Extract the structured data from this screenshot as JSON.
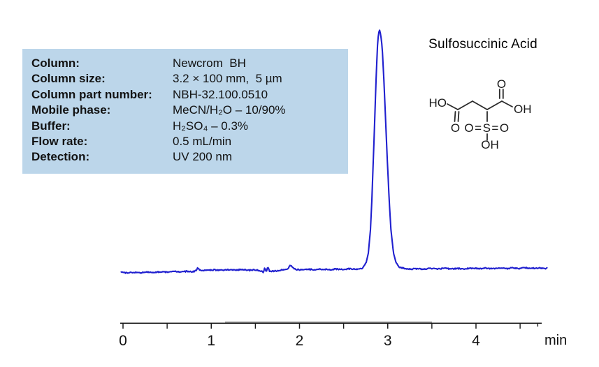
{
  "title": "Sulfosuccinic Acid",
  "params": {
    "background_color": "#bcd6ea",
    "rows": [
      {
        "label": "Column:",
        "value": "Newcrom  BH"
      },
      {
        "label": "Column size:",
        "value": "3.2 × 100 mm,  5 µm"
      },
      {
        "label": "Column part number:",
        "value": "NBH-32.100.0510"
      },
      {
        "label": "Mobile phase:",
        "value": "MeCN/H₂O – 10/90%"
      },
      {
        "label": "Buffer:",
        "value": "H₂SO₄ – 0.3%"
      },
      {
        "label": "Flow rate:",
        "value": "0.5 mL/min"
      },
      {
        "label": "Detection:",
        "value": "UV 200 nm"
      }
    ]
  },
  "structure": {
    "compound": "Sulfosuccinic Acid",
    "atom_labels": {
      "ho_left": "HO",
      "o_carbonyl_left": "O",
      "o_carbonyl_right": "O",
      "oh_right": "OH",
      "sulfonyl": "O=S=O",
      "oh_bottom": "OH"
    }
  },
  "chart_data": {
    "type": "line",
    "title": "",
    "xlabel": "min",
    "ylabel": "",
    "grid": false,
    "legend": false,
    "x_axis": {
      "min": 0,
      "max": 4.75,
      "labeled_ticks": [
        {
          "t": 0,
          "label": "0"
        },
        {
          "t": 1,
          "label": "1"
        },
        {
          "t": 2,
          "label": "2"
        },
        {
          "t": 3,
          "label": "3"
        },
        {
          "t": 4,
          "label": "4"
        }
      ],
      "minor_ticks": [
        0.5,
        1.5,
        2.5,
        3.5,
        4.5
      ],
      "end_tick": 4.7,
      "unit_label": "min"
    },
    "trace_color": "#2020cf",
    "axis_color": "#1a1a1a",
    "peaks": [
      {
        "compound": "Sulfosuccinic Acid",
        "retention_time_min": 2.91,
        "relative_height": 1.0
      }
    ],
    "series": [
      {
        "name": "UV 200 nm signal",
        "points": [
          [
            -0.02,
            0.003
          ],
          [
            0.05,
            0.004
          ],
          [
            0.15,
            0.004
          ],
          [
            0.25,
            0.005
          ],
          [
            0.35,
            0.005
          ],
          [
            0.45,
            0.006
          ],
          [
            0.55,
            0.007
          ],
          [
            0.65,
            0.007
          ],
          [
            0.75,
            0.008
          ],
          [
            0.8,
            0.009
          ],
          [
            0.825,
            0.012
          ],
          [
            0.845,
            0.022
          ],
          [
            0.862,
            0.015
          ],
          [
            0.88,
            0.012
          ],
          [
            0.95,
            0.013
          ],
          [
            1.05,
            0.014
          ],
          [
            1.15,
            0.014
          ],
          [
            1.25,
            0.015
          ],
          [
            1.35,
            0.015
          ],
          [
            1.45,
            0.014
          ],
          [
            1.52,
            0.013
          ],
          [
            1.575,
            0.01
          ],
          [
            1.59,
            0.002
          ],
          [
            1.605,
            0.024
          ],
          [
            1.625,
            0.008
          ],
          [
            1.64,
            0.026
          ],
          [
            1.66,
            0.008
          ],
          [
            1.68,
            0.01
          ],
          [
            1.76,
            0.012
          ],
          [
            1.82,
            0.014
          ],
          [
            1.86,
            0.018
          ],
          [
            1.895,
            0.034
          ],
          [
            1.93,
            0.022
          ],
          [
            1.96,
            0.016
          ],
          [
            2.05,
            0.016
          ],
          [
            2.15,
            0.016
          ],
          [
            2.25,
            0.017
          ],
          [
            2.35,
            0.017
          ],
          [
            2.45,
            0.017
          ],
          [
            2.55,
            0.018
          ],
          [
            2.65,
            0.018
          ],
          [
            2.7,
            0.019
          ],
          [
            2.725,
            0.025
          ],
          [
            2.757,
            0.045
          ],
          [
            2.78,
            0.085
          ],
          [
            2.804,
            0.18
          ],
          [
            2.82,
            0.3
          ],
          [
            2.836,
            0.46
          ],
          [
            2.852,
            0.63
          ],
          [
            2.867,
            0.79
          ],
          [
            2.883,
            0.93
          ],
          [
            2.895,
            0.985
          ],
          [
            2.907,
            1.0
          ],
          [
            2.919,
            0.985
          ],
          [
            2.937,
            0.93
          ],
          [
            2.957,
            0.79
          ],
          [
            2.976,
            0.63
          ],
          [
            2.996,
            0.46
          ],
          [
            3.016,
            0.3
          ],
          [
            3.036,
            0.18
          ],
          [
            3.065,
            0.085
          ],
          [
            3.095,
            0.045
          ],
          [
            3.135,
            0.025
          ],
          [
            3.184,
            0.02
          ],
          [
            3.25,
            0.019
          ],
          [
            3.35,
            0.019
          ],
          [
            3.45,
            0.019
          ],
          [
            3.55,
            0.02
          ],
          [
            3.65,
            0.02
          ],
          [
            3.75,
            0.02
          ],
          [
            3.85,
            0.02
          ],
          [
            3.95,
            0.021
          ],
          [
            4.05,
            0.021
          ],
          [
            4.15,
            0.021
          ],
          [
            4.25,
            0.021
          ],
          [
            4.35,
            0.021
          ],
          [
            4.45,
            0.022
          ],
          [
            4.55,
            0.022
          ],
          [
            4.65,
            0.022
          ],
          [
            4.75,
            0.022
          ],
          [
            4.81,
            0.022
          ]
        ]
      }
    ]
  }
}
